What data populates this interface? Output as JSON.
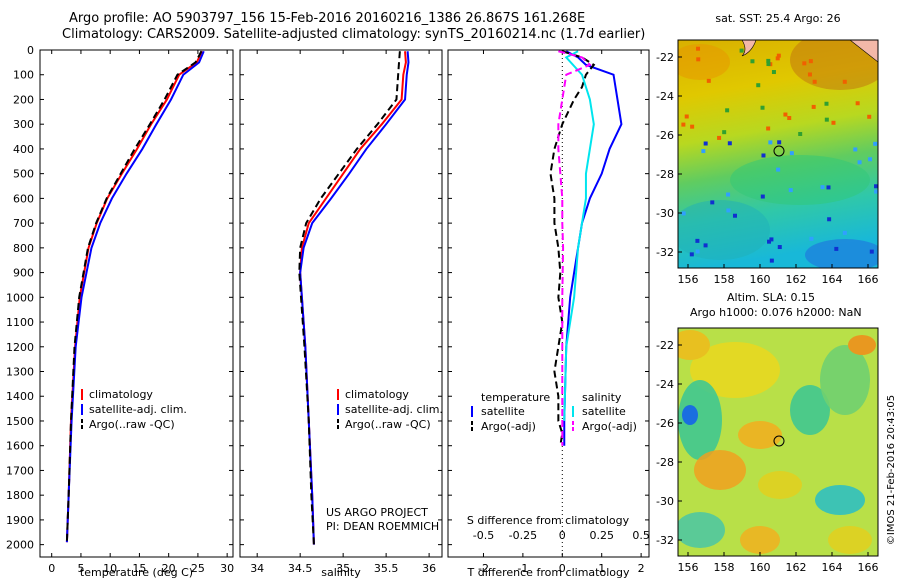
{
  "header": {
    "line1": "Argo profile: AO 5903797_156 15-Feb-2016 20160216_1386 26.867S 161.268E",
    "line2": "Climatology: CARS2009. Satellite-adjusted climatology: synTS_20160214.nc (1.7d earlier)"
  },
  "colors": {
    "climatology": "#ff0000",
    "satellite": "#0000ff",
    "argo": "#000000",
    "sal_satellite": "#00e5ee",
    "sal_argo": "#ff00ff"
  },
  "chart_data": [
    {
      "type": "line",
      "xlabel": "temperature (deg C)",
      "xlim": [
        -2,
        31
      ],
      "xticks": [
        0,
        5,
        10,
        15,
        20,
        25,
        30
      ],
      "ylim": [
        0,
        2050
      ],
      "yticks": [
        0,
        100,
        200,
        300,
        400,
        500,
        600,
        700,
        800,
        900,
        1000,
        1100,
        1200,
        1300,
        1400,
        1500,
        1600,
        1700,
        1800,
        1900,
        2000
      ],
      "legend": [
        "climatology",
        "satellite-adj. clim.",
        "Argo(..raw -QC)"
      ],
      "series": [
        {
          "name": "climatology",
          "color": "#ff0000",
          "depth": [
            5,
            50,
            100,
            200,
            300,
            400,
            500,
            600,
            700,
            800,
            1000,
            1200,
            1500,
            1800,
            1990
          ],
          "values": [
            25.7,
            24.8,
            21.8,
            19.7,
            17.0,
            14.6,
            12.0,
            9.5,
            7.7,
            6.3,
            4.8,
            4.0,
            3.3,
            2.9,
            2.6
          ]
        },
        {
          "name": "satellite-adj. clim.",
          "color": "#0000ff",
          "depth": [
            5,
            50,
            100,
            200,
            300,
            400,
            500,
            600,
            700,
            800,
            1000,
            1200,
            1500,
            1800,
            1990
          ],
          "values": [
            26.0,
            25.2,
            22.5,
            20.4,
            17.9,
            15.5,
            12.8,
            10.3,
            8.3,
            6.8,
            5.1,
            4.1,
            3.4,
            2.9,
            2.6
          ]
        },
        {
          "name": "Argo(..raw -QC)",
          "color": "#000000",
          "dash": true,
          "depth": [
            5,
            50,
            100,
            200,
            300,
            400,
            500,
            600,
            700,
            800,
            1000,
            1200,
            1500,
            1800,
            1990
          ],
          "values": [
            25.6,
            24.6,
            21.5,
            19.3,
            16.8,
            14.2,
            11.8,
            9.4,
            7.6,
            6.2,
            4.7,
            3.9,
            3.3,
            2.9,
            2.6
          ]
        }
      ]
    },
    {
      "type": "line",
      "xlabel": "salinity",
      "xlim": [
        33.8,
        36.15
      ],
      "xticks": [
        34,
        34.5,
        35,
        35.5,
        36
      ],
      "ylim": [
        0,
        2050
      ],
      "legend": [
        "climatology",
        "satellite-adj. clim.",
        "Argo(..raw -QC)"
      ],
      "annotation": [
        "US ARGO PROJECT",
        "PI: DEAN ROEMMICH"
      ],
      "series": [
        {
          "name": "climatology",
          "color": "#ff0000",
          "depth": [
            5,
            50,
            100,
            200,
            300,
            400,
            500,
            600,
            700,
            800,
            900,
            1000,
            1200,
            1500,
            1800,
            2000
          ],
          "values": [
            35.72,
            35.73,
            35.7,
            35.68,
            35.45,
            35.2,
            35.0,
            34.8,
            34.6,
            34.52,
            34.5,
            34.52,
            34.56,
            34.6,
            34.64,
            34.66
          ]
        },
        {
          "name": "satellite-adj. clim.",
          "color": "#0000ff",
          "depth": [
            5,
            50,
            100,
            200,
            300,
            400,
            500,
            600,
            700,
            800,
            900,
            1000,
            1200,
            1500,
            1800,
            2000
          ],
          "values": [
            35.75,
            35.76,
            35.74,
            35.72,
            35.5,
            35.27,
            35.07,
            34.86,
            34.64,
            34.54,
            34.5,
            34.52,
            34.56,
            34.6,
            34.64,
            34.66
          ]
        },
        {
          "name": "Argo(..raw -QC)",
          "color": "#000000",
          "dash": true,
          "depth": [
            5,
            50,
            100,
            200,
            300,
            400,
            500,
            600,
            700,
            800,
            900,
            1000,
            1200,
            1500,
            1800,
            2000
          ],
          "values": [
            35.66,
            35.65,
            35.64,
            35.62,
            35.4,
            35.16,
            34.95,
            34.74,
            34.57,
            34.5,
            34.49,
            34.51,
            34.55,
            34.6,
            34.63,
            34.66
          ]
        }
      ]
    },
    {
      "type": "line",
      "xlabel": "T difference from climatology",
      "xlabel_top": "S difference from climatology",
      "xlim": [
        -2.9,
        2.2
      ],
      "xticks": [
        -2,
        -1,
        0,
        1,
        2
      ],
      "sticks_labels": [
        "-0.5",
        "-0.25",
        "0",
        "0.25",
        "0.5"
      ],
      "legend_temperature": {
        "title": "temperature",
        "items": [
          "satellite",
          "Argo(-adj)"
        ]
      },
      "legend_salinity": {
        "title": "salinity",
        "items": [
          "satellite",
          "Argo(-adj)"
        ]
      },
      "series": [
        {
          "name": "T satellite",
          "color": "#0000ff",
          "depth": [
            5,
            30,
            60,
            100,
            200,
            300,
            400,
            500,
            600,
            700,
            800,
            1000,
            1200,
            1500,
            1600
          ],
          "values": [
            0.1,
            0.4,
            0.6,
            1.3,
            1.4,
            1.5,
            1.2,
            1.0,
            0.7,
            0.5,
            0.4,
            0.2,
            0.1,
            0.05,
            0.05
          ]
        },
        {
          "name": "T Argo(-adj)",
          "color": "#000000",
          "dash": true,
          "depth": [
            5,
            30,
            60,
            100,
            150,
            200,
            300,
            400,
            500,
            600,
            700,
            800,
            900,
            1000,
            1100,
            1200,
            1300,
            1400,
            1500,
            1550,
            1600
          ],
          "values": [
            0.0,
            0.5,
            0.8,
            0.6,
            0.5,
            0.3,
            0.0,
            -0.2,
            -0.3,
            -0.2,
            -0.2,
            -0.1,
            -0.05,
            -0.1,
            0.0,
            -0.1,
            -0.2,
            -0.1,
            -0.1,
            0.0,
            -0.05
          ]
        },
        {
          "name": "S satellite",
          "color": "#00e5ee",
          "depth": [
            5,
            30,
            100,
            200,
            300,
            400,
            500,
            600,
            700,
            800,
            1000,
            1200,
            1500
          ],
          "values": [
            0.4,
            0.1,
            0.5,
            0.7,
            0.8,
            0.7,
            0.6,
            0.6,
            0.5,
            0.4,
            0.3,
            0.1,
            0.05
          ]
        },
        {
          "name": "S Argo(-adj)",
          "color": "#ff00ff",
          "dash": true,
          "depth": [
            5,
            30,
            60,
            100,
            200,
            300,
            400,
            500,
            600,
            700,
            800,
            1000,
            1200,
            1400,
            1500,
            1600
          ],
          "values": [
            -0.1,
            0.5,
            0.7,
            0.1,
            0.0,
            -0.1,
            -0.1,
            -0.05,
            0.0,
            0.0,
            0.02,
            0.0,
            0.0,
            0.0,
            0.0,
            0.0
          ]
        }
      ]
    }
  ],
  "maps": {
    "sst": {
      "title": "sat. SST: 25.4 Argo: 26",
      "xticks": [
        "156",
        "158",
        "160",
        "162",
        "164",
        "166"
      ],
      "yticks": [
        "-22",
        "-24",
        "-26",
        "-28",
        "-30",
        "-32"
      ]
    },
    "sla": {
      "title1": "Altim. SLA: 0.15",
      "title2": "Argo h1000: 0.076 h2000: NaN",
      "xticks": [
        "156",
        "158",
        "160",
        "162",
        "164",
        "166"
      ],
      "yticks": [
        "-22",
        "-24",
        "-26",
        "-28",
        "-30",
        "-32"
      ]
    }
  },
  "credit": "©IMOS 21-Feb-2016 20:43:05"
}
